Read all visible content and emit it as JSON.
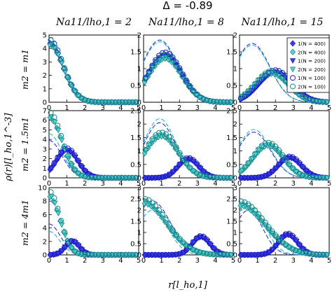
{
  "figure_title": "Δ = -0.89",
  "x_axis_label": "r[l_ho,1]",
  "y_axis_label": "ρ(r)[l_ho,1^-3]",
  "column_titles": [
    "Na11/lho,1 = 2",
    "Na11/lho,1 = 8",
    "Na11/lho,1 = 15"
  ],
  "row_labels": [
    "m2 = m1",
    "m2 = 1.5m1",
    "m2 = 4m1"
  ],
  "legend": [
    {
      "label": "1(N = 400)",
      "marker": "diamond",
      "color": "#1c1cc8",
      "fill": "#1c1cc8"
    },
    {
      "label": "2(N = 400)",
      "marker": "diamond",
      "color": "#168a8a",
      "fill": "#3cbcbc"
    },
    {
      "label": "1(N = 200)",
      "marker": "tri-down",
      "color": "#1c1cc8",
      "fill": "#1c1cc8"
    },
    {
      "label": "2(N = 200)",
      "marker": "tri-down",
      "color": "#168a8a",
      "fill": "#3cbcbc"
    },
    {
      "label": "1(N = 100)",
      "marker": "circle-open",
      "color": "#3030a8",
      "fill": "none"
    },
    {
      "label": "2(N = 100)",
      "marker": "circle-open",
      "color": "#168a8a",
      "fill": "none"
    }
  ],
  "colors": {
    "species1_dark": "#1c1cc8",
    "species1_mid": "#4040e0",
    "species2_dark": "#168a8a",
    "species2_light": "#5ed0d0",
    "dashed1": "#3030cc",
    "dashed2": "#22b8cc"
  },
  "chart_data": [
    {
      "type": "scatter",
      "row": 1,
      "col": 1,
      "xlim": [
        0,
        5
      ],
      "ylim": [
        0,
        5
      ],
      "xticks": [
        0,
        1,
        2,
        3,
        4,
        5
      ],
      "yticks": [
        0,
        1,
        2,
        3,
        4,
        5
      ],
      "curves": {
        "s1": {
          "r0": 0,
          "w": 1.1,
          "amp": 4.4
        },
        "s2": {
          "r0": 0,
          "w": 1.1,
          "amp": 4.3
        }
      },
      "dashed": [
        {
          "r0": 0,
          "w": 1.1,
          "amp": 4.4
        },
        {
          "r0": 0,
          "w": 1.1,
          "amp": 4.3
        }
      ]
    },
    {
      "type": "scatter",
      "row": 1,
      "col": 2,
      "xlim": [
        0,
        5
      ],
      "ylim": [
        0,
        2
      ],
      "xticks": [
        0,
        1,
        2,
        3,
        4,
        5
      ],
      "yticks": [
        0,
        0.5,
        1,
        1.5,
        2
      ],
      "curves": {
        "s1": {
          "r0": 1.2,
          "w": 1.3,
          "amp": 1.4
        },
        "s2": {
          "r0": 1.2,
          "w": 1.3,
          "amp": 1.3
        }
      },
      "dashed": [
        {
          "r0": 0.9,
          "w": 1.4,
          "amp": 1.85
        },
        {
          "r0": 0.9,
          "w": 1.4,
          "amp": 1.8
        }
      ]
    },
    {
      "type": "scatter",
      "row": 1,
      "col": 3,
      "xlim": [
        0,
        5
      ],
      "ylim": [
        0,
        2
      ],
      "xticks": [
        0,
        1,
        2,
        3,
        4,
        5
      ],
      "yticks": [
        0,
        0.5,
        1,
        1.5,
        2
      ],
      "curves": {
        "s1": {
          "r0": 2.0,
          "w": 1.3,
          "amp": 0.9
        },
        "s2": {
          "r0": 1.8,
          "w": 1.3,
          "amp": 0.85
        }
      },
      "dashed": [
        {
          "r0": 0.7,
          "w": 1.4,
          "amp": 1.75
        },
        {
          "r0": 0.7,
          "w": 1.4,
          "amp": 1.7
        }
      ]
    },
    {
      "type": "scatter",
      "row": 2,
      "col": 1,
      "xlim": [
        0,
        5
      ],
      "ylim": [
        0,
        7
      ],
      "xticks": [
        0,
        1,
        2,
        3,
        4,
        5
      ],
      "yticks": [
        0,
        1,
        2,
        3,
        4,
        5,
        6,
        7
      ],
      "curves": {
        "s1": {
          "r0": 1.0,
          "w": 0.85,
          "amp": 2.9
        },
        "s2": {
          "r0": 0,
          "w": 1.0,
          "amp": 6.3
        }
      },
      "dashed": [
        {
          "r0": 0,
          "w": 1.0,
          "amp": 3.9
        },
        {
          "r0": 0,
          "w": 1.0,
          "amp": 4.6
        }
      ]
    },
    {
      "type": "scatter",
      "row": 2,
      "col": 2,
      "xlim": [
        0,
        5
      ],
      "ylim": [
        0,
        2.5
      ],
      "xticks": [
        0,
        1,
        2,
        3,
        4,
        5
      ],
      "yticks": [
        0,
        0.5,
        1,
        1.5,
        2,
        2.5
      ],
      "curves": {
        "s1": {
          "r0": 2.5,
          "w": 0.8,
          "amp": 0.7
        },
        "s2": {
          "r0": 1.0,
          "w": 1.3,
          "amp": 1.55
        }
      },
      "dashed": [
        {
          "r0": 0.9,
          "w": 1.25,
          "amp": 2.05
        },
        {
          "r0": 0.9,
          "w": 1.25,
          "amp": 2.2
        }
      ]
    },
    {
      "type": "scatter",
      "row": 2,
      "col": 3,
      "xlim": [
        0,
        5
      ],
      "ylim": [
        0,
        2.5
      ],
      "xticks": [
        0,
        1,
        2,
        3,
        4,
        5
      ],
      "yticks": [
        0,
        0.5,
        1,
        1.5,
        2,
        2.5
      ],
      "curves": {
        "s1": {
          "r0": 2.8,
          "w": 0.9,
          "amp": 0.75
        },
        "s2": {
          "r0": 1.6,
          "w": 1.2,
          "amp": 1.2
        }
      },
      "dashed": [
        {
          "r0": 0.8,
          "w": 1.3,
          "amp": 1.7
        },
        {
          "r0": 0.8,
          "w": 1.3,
          "amp": 1.8
        }
      ]
    },
    {
      "type": "scatter",
      "row": 3,
      "col": 1,
      "xlim": [
        0,
        5
      ],
      "ylim": [
        0,
        10
      ],
      "xticks": [
        0,
        1,
        2,
        3,
        4,
        5
      ],
      "yticks": [
        0,
        2,
        4,
        6,
        8,
        10
      ],
      "curves": {
        "s1": {
          "r0": 1.3,
          "w": 0.55,
          "amp": 2.0
        },
        "s2": {
          "r0": 0,
          "w": 0.85,
          "amp": 8.7
        }
      },
      "dashed": [
        {
          "r0": 0,
          "w": 0.9,
          "amp": 4.6
        },
        {
          "r0": 0,
          "w": 0.85,
          "amp": 3.5
        }
      ]
    },
    {
      "type": "scatter",
      "row": 3,
      "col": 2,
      "xlim": [
        0,
        5
      ],
      "ylim": [
        0,
        3
      ],
      "xticks": [
        0,
        1,
        2,
        3,
        4,
        5
      ],
      "yticks": [
        0,
        0.5,
        1,
        1.5,
        2,
        2.5,
        3
      ],
      "curves": {
        "s1": {
          "r0": 3.2,
          "w": 0.7,
          "amp": 0.8
        },
        "s2": {
          "r0": 0,
          "w": 1.8,
          "amp": 2.3
        }
      },
      "dashed": [
        {
          "r0": 0.5,
          "w": 1.4,
          "amp": 2.4
        },
        {
          "r0": 0.5,
          "w": 1.2,
          "amp": 2.0
        }
      ]
    },
    {
      "type": "scatter",
      "row": 3,
      "col": 3,
      "xlim": [
        0,
        5
      ],
      "ylim": [
        0,
        3
      ],
      "xticks": [
        0,
        1,
        2,
        3,
        4,
        5
      ],
      "yticks": [
        0,
        0.5,
        1,
        1.5,
        2,
        2.5,
        3
      ],
      "curves": {
        "s1": {
          "r0": 2.7,
          "w": 0.75,
          "amp": 0.9
        },
        "s2": {
          "r0": 0,
          "w": 2.0,
          "amp": 2.2
        }
      },
      "dashed": [
        {
          "r0": 0.5,
          "w": 1.1,
          "amp": 2.0
        },
        {
          "r0": 0.5,
          "w": 1.2,
          "amp": 2.3
        }
      ]
    }
  ]
}
